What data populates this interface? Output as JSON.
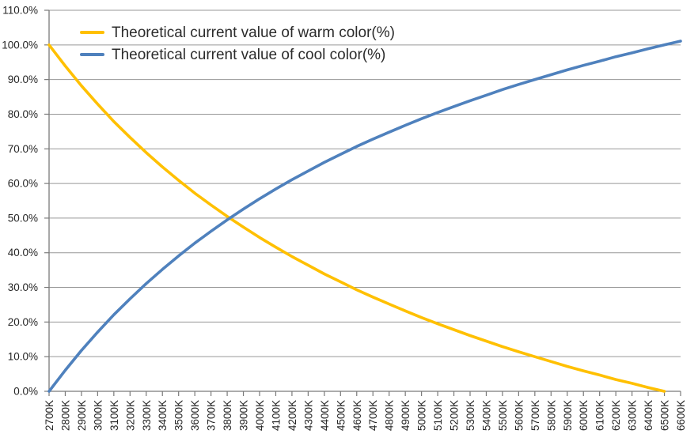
{
  "chart_data": {
    "type": "line",
    "title": "",
    "grid": "horizontal",
    "legend_position": "top-left-inside",
    "x_axis": {
      "unit": "K",
      "categories": [
        "2700K",
        "2800K",
        "2900K",
        "3000K",
        "3100K",
        "3200K",
        "3300K",
        "3400K",
        "3500K",
        "3600K",
        "3700K",
        "3800K",
        "3900K",
        "4000K",
        "4100K",
        "4200K",
        "4300K",
        "4400K",
        "4500K",
        "4600K",
        "4700K",
        "4800K",
        "4900K",
        "5000K",
        "5100K",
        "5200K",
        "5300K",
        "5400K",
        "5500K",
        "5600K",
        "5700K",
        "5800K",
        "5900K",
        "6000K",
        "6100K",
        "6200K",
        "6300K",
        "6400K",
        "6500K",
        "6600K"
      ]
    },
    "y_axis": {
      "min_pct": 0,
      "max_pct": 110,
      "step_pct": 10,
      "tick_labels": [
        "0.0%",
        "10.0%",
        "20.0%",
        "30.0%",
        "40.0%",
        "50.0%",
        "60.0%",
        "70.0%",
        "80.0%",
        "90.0%",
        "100.0%",
        "110.0%"
      ]
    },
    "series": [
      {
        "name": "Theoretical current value of warm color(%)",
        "color": "#FFC000",
        "values_pct": [
          100.0,
          93.9,
          88.2,
          82.9,
          77.9,
          73.3,
          68.9,
          64.8,
          60.9,
          57.2,
          53.8,
          50.5,
          47.4,
          44.4,
          41.6,
          38.9,
          36.4,
          33.9,
          31.6,
          29.3,
          27.2,
          25.2,
          23.2,
          21.3,
          19.5,
          17.8,
          16.1,
          14.5,
          12.9,
          11.4,
          10.0,
          8.6,
          7.2,
          5.9,
          4.7,
          3.4,
          2.3,
          1.1,
          0.0,
          null
        ]
      },
      {
        "name": "Theoretical current value of cool color(%)",
        "color": "#4F81BD",
        "values_pct": [
          0.0,
          6.1,
          11.8,
          17.1,
          22.1,
          26.7,
          31.1,
          35.2,
          39.1,
          42.8,
          46.2,
          49.5,
          52.6,
          55.6,
          58.4,
          61.1,
          63.6,
          66.1,
          68.4,
          70.7,
          72.8,
          74.8,
          76.8,
          78.7,
          80.5,
          82.2,
          83.9,
          85.5,
          87.1,
          88.6,
          90.0,
          91.4,
          92.8,
          94.1,
          95.3,
          96.6,
          97.7,
          98.9,
          100.0,
          101.1
        ]
      }
    ]
  },
  "colors": {
    "background": "#FFFFFF",
    "gridline": "#979797",
    "axis": "#7A7A7A",
    "tick_label": "#262626",
    "legend_text": "#2B2B2B",
    "warm": "#FFC000",
    "cool": "#4F81BD"
  }
}
